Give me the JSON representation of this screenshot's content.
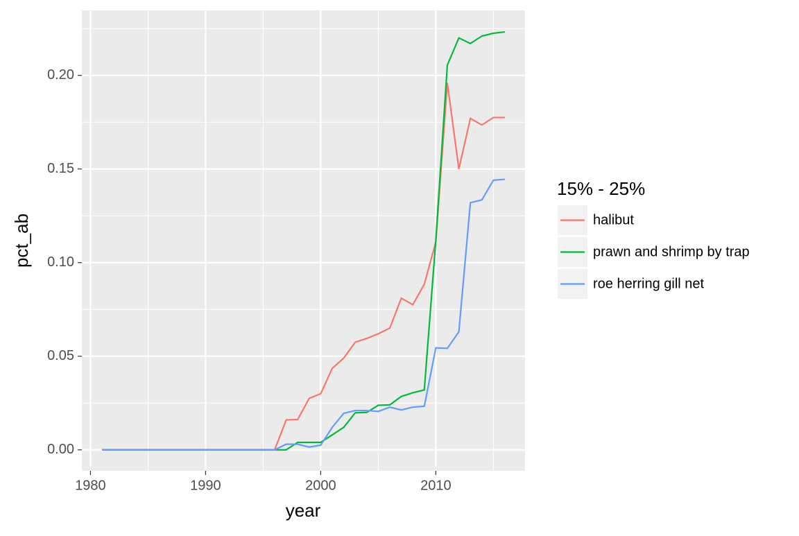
{
  "chart_data": {
    "type": "line",
    "x_label": "year",
    "y_label": "pct_ab",
    "legend_title": "15% - 25%",
    "legend_position": "right",
    "x": [
      1981,
      1982,
      1983,
      1984,
      1985,
      1986,
      1987,
      1988,
      1989,
      1990,
      1991,
      1992,
      1993,
      1994,
      1995,
      1996,
      1997,
      1998,
      1999,
      2000,
      2001,
      2002,
      2003,
      2004,
      2005,
      2006,
      2007,
      2008,
      2009,
      2010,
      2011,
      2012,
      2013,
      2014,
      2015,
      2016
    ],
    "series": [
      {
        "name": "halibut",
        "color": "#f8766d",
        "values": [
          0,
          0,
          0,
          0,
          0,
          0,
          0,
          0,
          0,
          0,
          0,
          0,
          0,
          0,
          0,
          0,
          0.016,
          0.0162,
          0.0275,
          0.03,
          0.0435,
          0.049,
          0.0575,
          0.0595,
          0.062,
          0.065,
          0.081,
          0.0775,
          0.0885,
          0.111,
          0.196,
          0.15,
          0.177,
          0.1735,
          0.1775,
          0.1775
        ]
      },
      {
        "name": "prawn and shrimp by trap",
        "color": "#00ba38",
        "values": [
          0,
          0,
          0,
          0,
          0,
          0,
          0,
          0,
          0,
          0,
          0,
          0,
          0,
          0,
          0,
          0,
          0,
          0.004,
          0.004,
          0.004,
          0.008,
          0.012,
          0.0198,
          0.02,
          0.0238,
          0.024,
          0.0285,
          0.0305,
          0.032,
          0.112,
          0.2055,
          0.22,
          0.217,
          0.221,
          0.2225,
          0.2232
        ]
      },
      {
        "name": "roe herring gill net",
        "color": "#619cff",
        "values": [
          0,
          0,
          0,
          0,
          0,
          0,
          0,
          0,
          0,
          0,
          0,
          0,
          0,
          0,
          0,
          0,
          0.003,
          0.003,
          0.0015,
          0.0025,
          0.012,
          0.0195,
          0.021,
          0.021,
          0.0205,
          0.0228,
          0.0213,
          0.0228,
          0.0233,
          0.0545,
          0.0542,
          0.063,
          0.132,
          0.1335,
          0.144,
          0.1445
        ]
      }
    ],
    "xlim": [
      1979.25,
      2017.75
    ],
    "ylim": [
      -0.0112,
      0.2347
    ],
    "xticks": [
      1980,
      1990,
      2000,
      2010
    ],
    "yticks": [
      {
        "value": 0,
        "label": "0.00"
      },
      {
        "value": 0.05,
        "label": "0.05"
      },
      {
        "value": 0.1,
        "label": "0.10"
      },
      {
        "value": 0.15,
        "label": "0.15"
      },
      {
        "value": 0.2,
        "label": "0.20"
      }
    ],
    "x_minor_ticks": [
      1985,
      1995,
      2005,
      2015
    ],
    "y_minor_ticks": [
      0.025,
      0.075,
      0.125,
      0.175,
      0.225
    ],
    "grid": true
  }
}
